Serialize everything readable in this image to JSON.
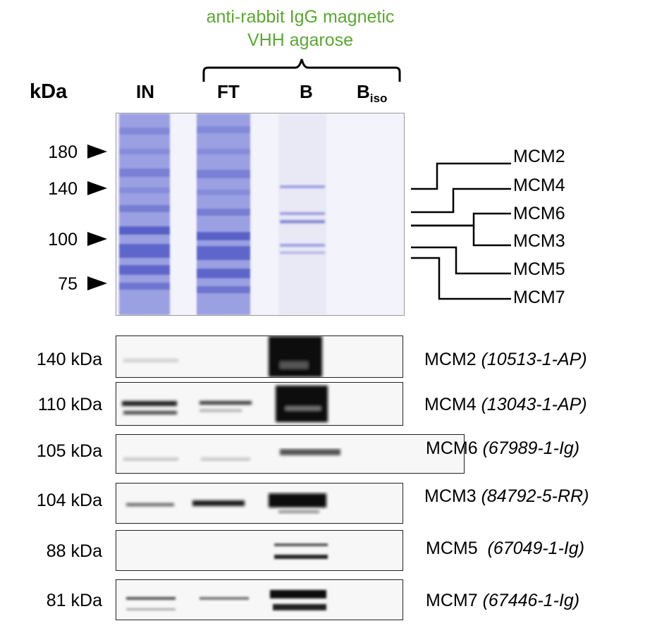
{
  "group_label": [
    "anti-rabbit IgG magnetic",
    "VHH agarose"
  ],
  "kda_header": "kDa",
  "lanes": [
    "IN",
    "FT",
    "B",
    "B"
  ],
  "lane_subscript": "iso",
  "gel_markers": [
    "180",
    "140",
    "100",
    "75"
  ],
  "gel_bands": [
    "MCM2",
    "MCM4",
    "MCM6",
    "MCM3",
    "MCM5",
    "MCM7"
  ],
  "blots": [
    {
      "mw": "140 kDa",
      "protein": "MCM2",
      "antibody": "(10513-1-AP)"
    },
    {
      "mw": "110 kDa",
      "protein": "MCM4",
      "antibody": "(13043-1-AP)"
    },
    {
      "mw": "105 kDa",
      "protein": "MCM6",
      "antibody": "(67989-1-Ig)"
    },
    {
      "mw": "104 kDa",
      "protein": "MCM3",
      "antibody": "(84792-5-RR)"
    },
    {
      "mw": "88 kDa",
      "protein": "MCM5 ",
      "antibody": "(67049-1-Ig)"
    },
    {
      "mw": "81 kDa",
      "protein": "MCM7",
      "antibody": "(67446-1-Ig)"
    }
  ]
}
